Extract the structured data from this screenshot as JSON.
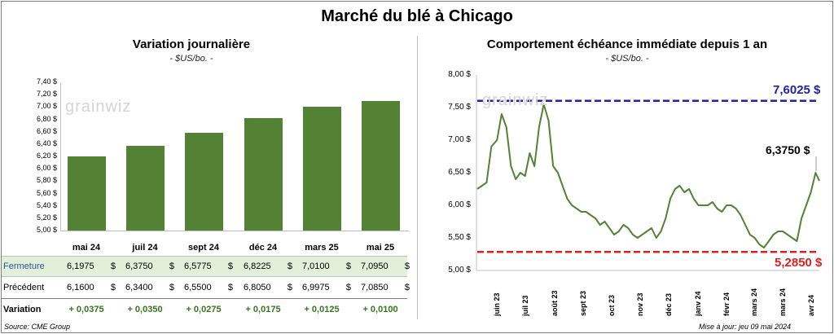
{
  "main_title": "Marché du blé à Chicago",
  "left": {
    "title": "Variation journalière",
    "unit": "- $US/bo. -",
    "watermark": "grainwiz",
    "yticks": [
      "7,40 $",
      "7,20 $",
      "7,00 $",
      "6,80 $",
      "6,60 $",
      "6,40 $",
      "6,20 $",
      "6,00 $",
      "5,80 $",
      "5,60 $",
      "5,40 $",
      "5,20 $",
      "5,00 $"
    ],
    "table": {
      "row_labels": [
        "Fermeture",
        "Précédent",
        "Variation"
      ],
      "dollar": "$",
      "fermeture": [
        "6,1975",
        "6,3750",
        "6,5775",
        "6,8225",
        "7,0100",
        "7,0950"
      ],
      "precedent": [
        "6,1600",
        "6,3400",
        "6,5500",
        "6,8050",
        "6,9975",
        "7,0850"
      ],
      "variation": [
        "+ 0,0375",
        "+ 0,0350",
        "+ 0,0275",
        "+ 0,0175",
        "+ 0,0125",
        "+ 0,0100"
      ]
    }
  },
  "right": {
    "title": "Comportement échéance immédiate depuis 1 an",
    "unit": "- $US/bo. -",
    "watermark": "grainwiz",
    "yticks": [
      "8,00 $",
      "7,50 $",
      "7,00 $",
      "6,50 $",
      "6,00 $",
      "5,50 $",
      "5,00 $"
    ],
    "high_label": "7,6025 $",
    "low_label": "5,2850 $",
    "last_label": "6,3750 $",
    "xlabels": [
      "juin 23",
      "juil 23",
      "août 23",
      "sept 23",
      "oct 23",
      "nov 23",
      "déc 23",
      "janv 24",
      "févr 24",
      "mars 24",
      "mars 24",
      "avr 24"
    ]
  },
  "footer": {
    "source": "Source: CME Group",
    "updated": "Mise à jour: jeu 09 mai 2024"
  },
  "colors": {
    "bar": "#548235",
    "line": "#548235",
    "high": "#1f1fb0",
    "low": "#e02020",
    "fermeture_bg": "#e2efd9",
    "variation_text": "#38761d"
  },
  "chart_data": [
    {
      "type": "bar",
      "title": "Variation journalière",
      "ylabel": "- $US/bo. -",
      "categories": [
        "mai 24",
        "juil 24",
        "sept 24",
        "déc 24",
        "mars 25",
        "mai 25"
      ],
      "values": [
        6.1975,
        6.375,
        6.5775,
        6.8225,
        7.01,
        7.095
      ],
      "ylim": [
        5.0,
        7.4
      ]
    },
    {
      "type": "line",
      "title": "Comportement échéance immédiate depuis 1 an",
      "ylabel": "- $US/bo. -",
      "ylim": [
        5.0,
        8.0
      ],
      "xlim": [
        "2023-05-10",
        "2024-05-09"
      ],
      "x": [
        "2023-05-10",
        "2023-05-15",
        "2023-05-20",
        "2023-05-25",
        "2023-05-31",
        "2023-06-05",
        "2023-06-10",
        "2023-06-15",
        "2023-06-20",
        "2023-06-25",
        "2023-06-30",
        "2023-07-05",
        "2023-07-10",
        "2023-07-15",
        "2023-07-20",
        "2023-07-25",
        "2023-07-30",
        "2023-08-04",
        "2023-08-09",
        "2023-08-14",
        "2023-08-19",
        "2023-08-24",
        "2023-08-29",
        "2023-09-03",
        "2023-09-08",
        "2023-09-13",
        "2023-09-18",
        "2023-09-23",
        "2023-09-28",
        "2023-10-03",
        "2023-10-08",
        "2023-10-13",
        "2023-10-18",
        "2023-10-23",
        "2023-10-28",
        "2023-11-02",
        "2023-11-07",
        "2023-11-12",
        "2023-11-17",
        "2023-11-22",
        "2023-11-27",
        "2023-12-02",
        "2023-12-07",
        "2023-12-12",
        "2023-12-17",
        "2023-12-22",
        "2023-12-27",
        "2024-01-01",
        "2024-01-06",
        "2024-01-11",
        "2024-01-16",
        "2024-01-21",
        "2024-01-26",
        "2024-01-31",
        "2024-02-05",
        "2024-02-10",
        "2024-02-15",
        "2024-02-20",
        "2024-02-25",
        "2024-03-01",
        "2024-03-06",
        "2024-03-11",
        "2024-03-16",
        "2024-03-21",
        "2024-03-26",
        "2024-03-31",
        "2024-04-05",
        "2024-04-10",
        "2024-04-15",
        "2024-04-20",
        "2024-04-25",
        "2024-04-30",
        "2024-05-05",
        "2024-05-09"
      ],
      "series": [
        {
          "values": [
            6.25,
            6.3,
            6.35,
            6.9,
            7.0,
            7.4,
            7.2,
            6.6,
            6.4,
            6.5,
            6.45,
            6.8,
            6.6,
            7.2,
            7.55,
            7.3,
            6.6,
            6.5,
            6.3,
            6.1,
            6.0,
            5.95,
            5.9,
            5.9,
            5.85,
            5.8,
            5.7,
            5.75,
            5.65,
            5.55,
            5.6,
            5.7,
            5.65,
            5.55,
            5.5,
            5.55,
            5.6,
            5.65,
            5.5,
            5.6,
            5.8,
            6.1,
            6.25,
            6.3,
            6.2,
            6.25,
            6.1,
            6.0,
            6.0,
            6.0,
            6.05,
            5.95,
            5.9,
            6.0,
            6.0,
            5.95,
            5.85,
            5.7,
            5.55,
            5.5,
            5.4,
            5.35,
            5.45,
            5.55,
            5.6,
            5.6,
            5.55,
            5.5,
            5.45,
            5.8,
            6.0,
            6.2,
            6.5,
            6.375
          ]
        }
      ],
      "annotations": {
        "high": 7.6025,
        "low": 5.285,
        "last": 6.375
      }
    }
  ]
}
